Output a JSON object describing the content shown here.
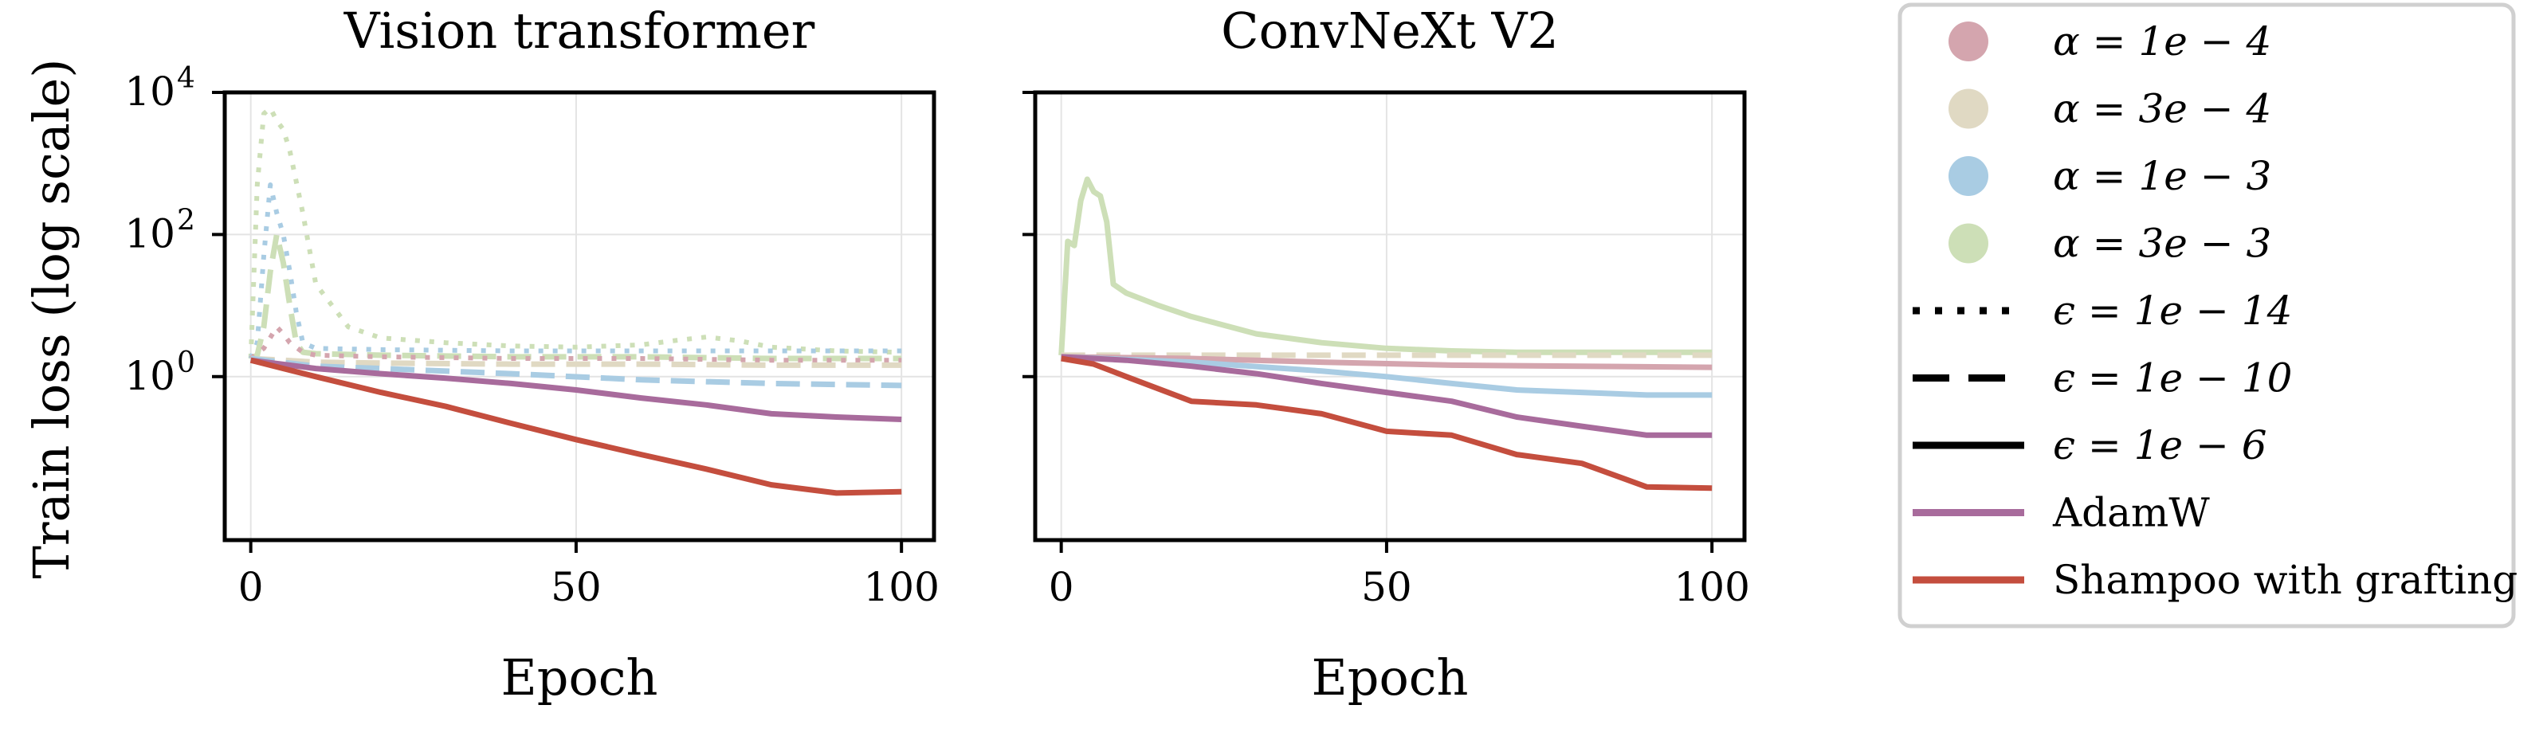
{
  "figure": {
    "ylabel": "Train loss (log scale)",
    "panels": [
      {
        "title": "Vision transformer",
        "xlabel": "Epoch"
      },
      {
        "title": "ConvNeXt V2",
        "xlabel": "Epoch"
      }
    ],
    "xticks": [
      "0",
      "50",
      "100"
    ],
    "yticks": [
      {
        "base": "10",
        "exp": "0",
        "value": 1
      },
      {
        "base": "10",
        "exp": "2",
        "value": 100
      },
      {
        "base": "10",
        "exp": "4",
        "value": 10000
      }
    ]
  },
  "legend": {
    "items": [
      {
        "label": "α = 1e − 4",
        "kind": "dot",
        "color": "#d4a5ae"
      },
      {
        "label": "α = 3e − 4",
        "kind": "dot",
        "color": "#e0d9c3"
      },
      {
        "label": "α = 1e − 3",
        "kind": "dot",
        "color": "#a9cce3"
      },
      {
        "label": "α = 3e − 3",
        "kind": "dot",
        "color": "#cddfb7"
      },
      {
        "label": "ϵ = 1e − 14",
        "kind": "dotted",
        "color": "#000000"
      },
      {
        "label": "ϵ = 1e − 10",
        "kind": "dashed",
        "color": "#000000"
      },
      {
        "label": "ϵ = 1e − 6",
        "kind": "solid",
        "color": "#000000"
      },
      {
        "label": "AdamW",
        "kind": "solid",
        "color": "#a86b9c"
      },
      {
        "label": "Shampoo with grafting",
        "kind": "solid",
        "color": "#c44e3e"
      }
    ]
  },
  "chart_data": [
    {
      "type": "line",
      "title": "Vision transformer",
      "xlabel": "Epoch",
      "ylabel": "Train loss (log scale)",
      "yscale": "log",
      "xlim": [
        -4,
        105
      ],
      "ylim": [
        0.005,
        10000
      ],
      "grid": true,
      "series": [
        {
          "name": "α = 3e − 3, ϵ = 1e − 14",
          "color": "#cddfb7",
          "style": "dotted",
          "x": [
            0,
            1,
            2,
            3,
            4,
            5,
            6,
            8,
            10,
            15,
            20,
            30,
            40,
            50,
            60,
            65,
            70,
            75,
            80,
            90,
            100
          ],
          "y": [
            1.8,
            500,
            5000,
            6000,
            4000,
            3000,
            1500,
            200,
            20,
            5,
            3.5,
            3,
            2.7,
            2.6,
            2.8,
            3.2,
            3.6,
            3.2,
            2.6,
            2.3,
            2.2
          ]
        },
        {
          "name": "α = 1e − 3, ϵ = 1e − 14",
          "color": "#a9cce3",
          "style": "dotted",
          "x": [
            0,
            1,
            2,
            3,
            4,
            5,
            6,
            7,
            8,
            10,
            20,
            40,
            60,
            80,
            100
          ],
          "y": [
            1.8,
            3,
            50,
            500,
            200,
            100,
            30,
            8,
            3,
            2.5,
            2.4,
            2.3,
            2.3,
            2.3,
            2.3
          ]
        },
        {
          "name": "α = 3e − 3, ϵ = 1e − 10",
          "color": "#cddfb7",
          "style": "dashed",
          "x": [
            0,
            1,
            2,
            3,
            4,
            5,
            6,
            7,
            8,
            10,
            20,
            40,
            60,
            80,
            100
          ],
          "y": [
            1.8,
            2,
            5,
            30,
            100,
            40,
            10,
            3,
            2.2,
            2.1,
            2,
            1.9,
            1.9,
            1.8,
            1.8
          ]
        },
        {
          "name": "α = 1e − 4, ϵ = 1e − 14",
          "color": "#d4a5ae",
          "style": "dotted",
          "x": [
            0,
            2,
            4,
            5,
            6,
            8,
            10,
            20,
            40,
            60,
            80,
            100
          ],
          "y": [
            1.8,
            2.5,
            5,
            4,
            3,
            2.2,
            2,
            1.9,
            1.8,
            1.8,
            1.7,
            1.7
          ]
        },
        {
          "name": "α = 3e − 4, ϵ = 1e − 10",
          "color": "#e0d9c3",
          "style": "dashed",
          "x": [
            0,
            5,
            10,
            20,
            40,
            60,
            80,
            100
          ],
          "y": [
            1.8,
            1.7,
            1.6,
            1.55,
            1.5,
            1.5,
            1.45,
            1.45
          ]
        },
        {
          "name": "α = 1e − 3, ϵ = 1e − 10",
          "color": "#a9cce3",
          "style": "dashed",
          "x": [
            0,
            10,
            20,
            40,
            60,
            80,
            100
          ],
          "y": [
            1.8,
            1.4,
            1.3,
            1.1,
            0.9,
            0.8,
            0.75
          ]
        },
        {
          "name": "AdamW",
          "color": "#a86b9c",
          "style": "solid",
          "x": [
            0,
            10,
            20,
            30,
            40,
            50,
            60,
            70,
            80,
            90,
            100
          ],
          "y": [
            1.7,
            1.3,
            1.1,
            0.95,
            0.8,
            0.65,
            0.5,
            0.4,
            0.3,
            0.27,
            0.25
          ]
        },
        {
          "name": "Shampoo with grafting",
          "color": "#c44e3e",
          "style": "solid",
          "x": [
            0,
            5,
            10,
            20,
            30,
            40,
            50,
            60,
            70,
            80,
            90,
            100
          ],
          "y": [
            1.7,
            1.3,
            1.0,
            0.6,
            0.38,
            0.22,
            0.13,
            0.08,
            0.05,
            0.03,
            0.023,
            0.024
          ]
        }
      ]
    },
    {
      "type": "line",
      "title": "ConvNeXt V2",
      "xlabel": "Epoch",
      "yscale": "log",
      "xlim": [
        -4,
        105
      ],
      "ylim": [
        0.005,
        10000
      ],
      "grid": true,
      "series": [
        {
          "name": "α = 3e − 3, ϵ = 1e − 6",
          "color": "#cddfb7",
          "style": "solid",
          "x": [
            0,
            1,
            2,
            3,
            4,
            5,
            6,
            7,
            8,
            10,
            15,
            20,
            30,
            40,
            50,
            60,
            70,
            80,
            90,
            100
          ],
          "y": [
            2,
            80,
            70,
            300,
            600,
            400,
            350,
            150,
            20,
            15,
            10,
            7,
            4,
            3,
            2.5,
            2.3,
            2.2,
            2.2,
            2.2,
            2.2
          ]
        },
        {
          "name": "α = 3e − 4, ϵ = 1e − 10",
          "color": "#e0d9c3",
          "style": "dashed",
          "x": [
            0,
            20,
            40,
            60,
            80,
            100
          ],
          "y": [
            2.0,
            2.0,
            2.0,
            2.0,
            2.0,
            2.0
          ]
        },
        {
          "name": "α = 1e − 4, ϵ = 1e − 6",
          "color": "#d4a5ae",
          "style": "solid",
          "x": [
            0,
            20,
            40,
            60,
            80,
            100
          ],
          "y": [
            1.9,
            1.8,
            1.6,
            1.45,
            1.4,
            1.35
          ]
        },
        {
          "name": "α = 1e − 3, ϵ = 1e − 6",
          "color": "#a9cce3",
          "style": "solid",
          "x": [
            0,
            20,
            40,
            50,
            60,
            70,
            80,
            90,
            100
          ],
          "y": [
            1.9,
            1.6,
            1.2,
            1.0,
            0.8,
            0.65,
            0.6,
            0.55,
            0.55
          ]
        },
        {
          "name": "AdamW",
          "color": "#a86b9c",
          "style": "solid",
          "x": [
            0,
            10,
            20,
            30,
            40,
            50,
            60,
            70,
            80,
            90,
            100
          ],
          "y": [
            1.9,
            1.7,
            1.4,
            1.1,
            0.8,
            0.6,
            0.45,
            0.27,
            0.2,
            0.15,
            0.15
          ]
        },
        {
          "name": "Shampoo with grafting",
          "color": "#c44e3e",
          "style": "solid",
          "x": [
            0,
            5,
            10,
            20,
            30,
            40,
            50,
            60,
            70,
            80,
            90,
            100
          ],
          "y": [
            1.8,
            1.5,
            1.0,
            0.45,
            0.4,
            0.3,
            0.17,
            0.15,
            0.08,
            0.06,
            0.028,
            0.027
          ]
        }
      ]
    }
  ]
}
